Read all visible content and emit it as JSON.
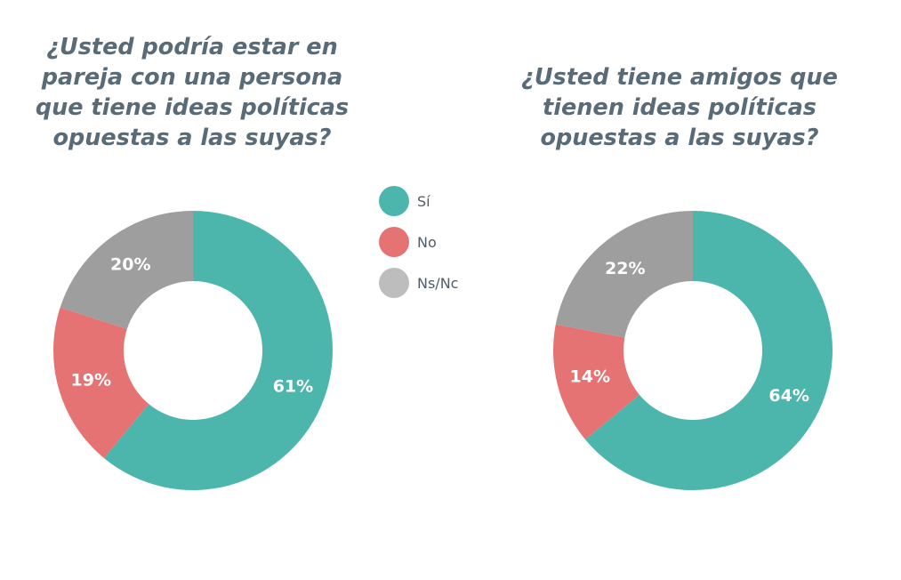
{
  "legend": {
    "items": [
      {
        "label": "Sí",
        "color": "#4db6ac"
      },
      {
        "label": "No",
        "color": "#e57373"
      },
      {
        "label": "Ns/Nc",
        "color": "#9e9e9e"
      }
    ],
    "legend_ns_swatch_color": "#bdbdbd"
  },
  "chart_data": [
    {
      "type": "pie",
      "style": "donut",
      "title": "¿Usted podría estar en\npareja con una persona\nque tiene ideas políticas\nopuestas a las suyas?",
      "categories": [
        "Sí",
        "No",
        "Ns/Nc"
      ],
      "values": [
        61,
        19,
        20
      ],
      "labels": [
        "61%",
        "19%",
        "20%"
      ],
      "unit": "%"
    },
    {
      "type": "pie",
      "style": "donut",
      "title": "¿Usted tiene amigos que\ntienen ideas políticas\nopuestas a las suyas?",
      "categories": [
        "Sí",
        "No",
        "Ns/Nc"
      ],
      "values": [
        64,
        14,
        22
      ],
      "labels": [
        "64%",
        "14%",
        "22%"
      ],
      "unit": "%"
    }
  ]
}
